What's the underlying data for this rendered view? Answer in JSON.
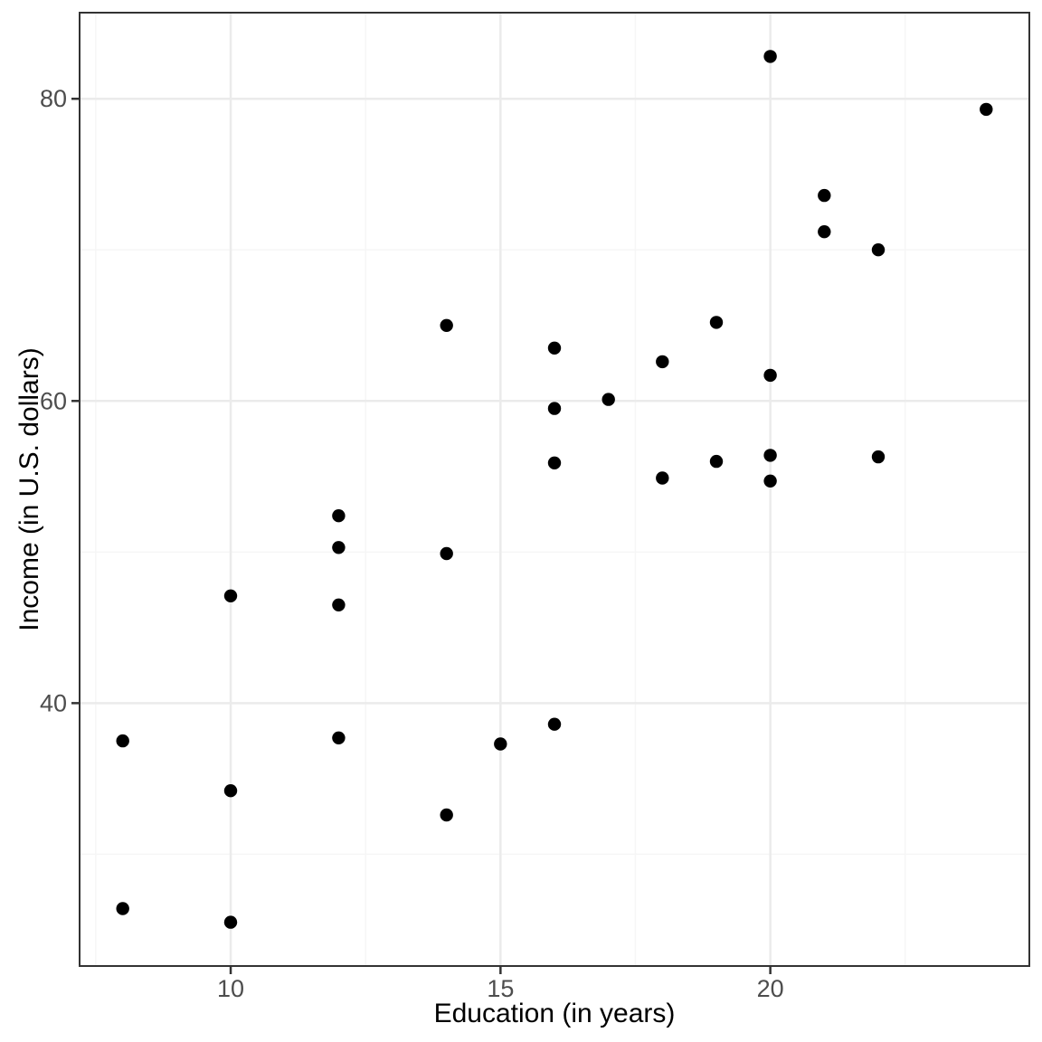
{
  "colors": {
    "background": "#FFFFFF",
    "panel_background": "#FFFFFF",
    "panel_border": "#333333",
    "grid_major": "#EBEBEB",
    "grid_minor": "#F6F6F6",
    "tick_mark": "#333333",
    "tick_label": "#4D4D4D",
    "axis_title": "#000000",
    "point": "#000000"
  },
  "chart_data": {
    "type": "scatter",
    "title": "",
    "xlabel": "Education (in years)",
    "ylabel": "Income (in U.S. dollars)",
    "xlim": [
      7.2,
      24.8
    ],
    "ylim": [
      22.6,
      85.7
    ],
    "x_major_ticks": [
      10,
      15,
      20
    ],
    "y_major_ticks": [
      40,
      60,
      80
    ],
    "x_minor_gridlines": [
      7.5,
      12.5,
      17.5,
      22.5
    ],
    "y_minor_gridlines": [
      30,
      50,
      70
    ],
    "grid": "major and minor, light grey on white panel",
    "legend_position": "none",
    "point_count": 31,
    "points": [
      [
        8,
        37.5
      ],
      [
        8,
        26.4
      ],
      [
        10,
        47.1
      ],
      [
        10,
        34.2
      ],
      [
        10,
        25.5
      ],
      [
        12,
        52.4
      ],
      [
        12,
        50.3
      ],
      [
        12,
        46.5
      ],
      [
        12,
        37.7
      ],
      [
        14,
        65.0
      ],
      [
        14,
        49.9
      ],
      [
        14,
        32.6
      ],
      [
        15,
        37.3
      ],
      [
        16,
        63.5
      ],
      [
        16,
        59.5
      ],
      [
        16,
        55.9
      ],
      [
        16,
        38.6
      ],
      [
        17,
        60.1
      ],
      [
        18,
        62.6
      ],
      [
        18,
        54.9
      ],
      [
        19,
        65.2
      ],
      [
        19,
        56.0
      ],
      [
        20,
        82.8
      ],
      [
        20,
        61.7
      ],
      [
        20,
        56.4
      ],
      [
        20,
        54.7
      ],
      [
        21,
        73.6
      ],
      [
        21,
        71.2
      ],
      [
        22,
        70.0
      ],
      [
        22,
        56.3
      ],
      [
        24,
        79.3
      ]
    ]
  }
}
